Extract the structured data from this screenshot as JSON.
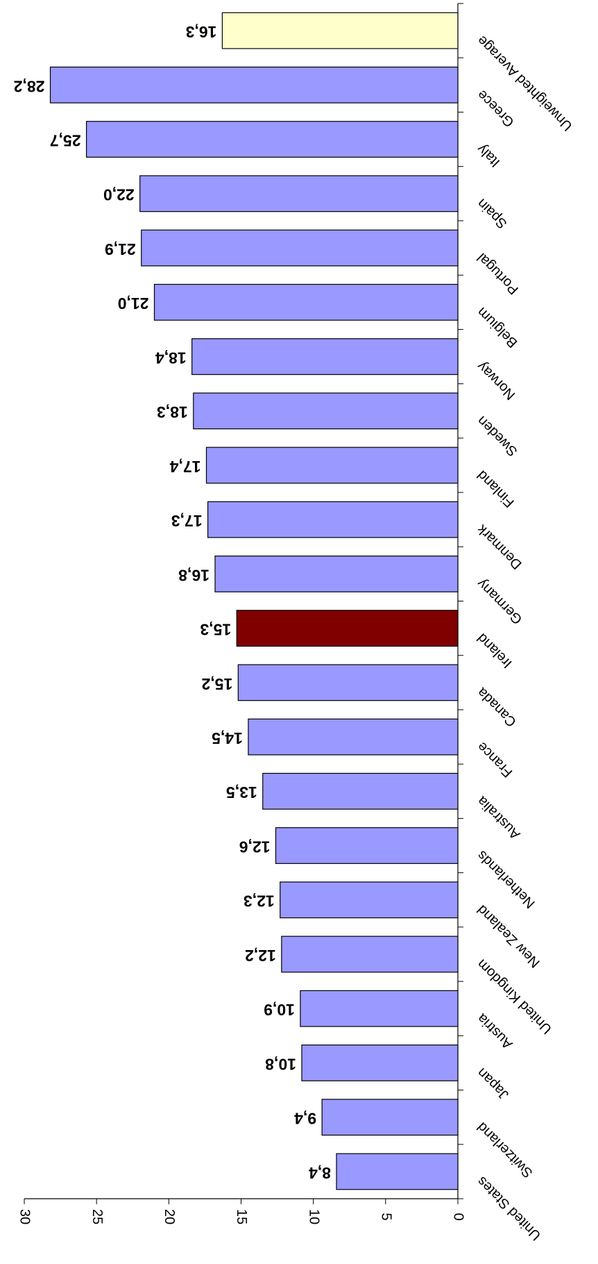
{
  "chart_data": {
    "type": "bar",
    "orientation": "rotated",
    "categories": [
      "United States",
      "Switzerland",
      "Japan",
      "Austria",
      "United Kingdom",
      "New Zealand",
      "Netherlands",
      "Australia",
      "France",
      "Canada",
      "Ireland",
      "Germany",
      "Denmark",
      "Finland",
      "Sweden",
      "Norway",
      "Belgium",
      "Portugal",
      "Spain",
      "Italy",
      "Greece",
      "Unweighted Average"
    ],
    "values": [
      8.4,
      9.4,
      10.8,
      10.9,
      12.2,
      12.3,
      12.6,
      13.5,
      14.5,
      15.2,
      15.3,
      16.8,
      17.3,
      17.4,
      18.3,
      18.4,
      21.0,
      21.9,
      22.0,
      25.7,
      28.2,
      16.3
    ],
    "value_labels": [
      "8,4",
      "9,4",
      "10,8",
      "10,9",
      "12,2",
      "12,3",
      "12,6",
      "13,5",
      "14,5",
      "15,2",
      "15,3",
      "16,8",
      "17,3",
      "17,4",
      "18,3",
      "18,4",
      "21,0",
      "21,9",
      "22,0",
      "25,7",
      "28,2",
      "16,3"
    ],
    "colors": [
      "#9999ff",
      "#9999ff",
      "#9999ff",
      "#9999ff",
      "#9999ff",
      "#9999ff",
      "#9999ff",
      "#9999ff",
      "#9999ff",
      "#9999ff",
      "#800000",
      "#9999ff",
      "#9999ff",
      "#9999ff",
      "#9999ff",
      "#9999ff",
      "#9999ff",
      "#9999ff",
      "#9999ff",
      "#9999ff",
      "#9999ff",
      "#ffffcc"
    ],
    "ylim": [
      0,
      30
    ],
    "yticks": [
      0,
      5,
      10,
      15,
      20,
      25,
      30
    ]
  }
}
